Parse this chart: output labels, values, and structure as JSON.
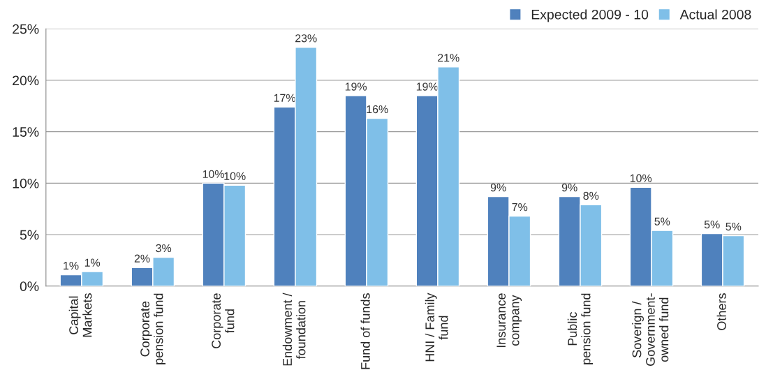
{
  "chart_data": {
    "type": "bar",
    "categories": [
      "Capital\nMarkets",
      "Corporate\npension fund",
      "Corporate\nfund",
      "Endowment /\nfoundation",
      "Fund of funds",
      "HNI / Family\nfund",
      "Insurance\ncompany",
      "Public\npension fund",
      "Soverign /\nGovernment-\nowned fund",
      "Others"
    ],
    "series": [
      {
        "name": "Expected 2009 - 10",
        "color": "#4f81bd",
        "values": [
          1.1,
          1.8,
          10.0,
          17.4,
          18.5,
          18.5,
          8.7,
          8.7,
          9.6,
          5.1
        ],
        "value_labels": [
          "1%",
          "2%",
          "10%",
          "17%",
          "19%",
          "19%",
          "9%",
          "9%",
          "10%",
          "5%"
        ]
      },
      {
        "name": "Actual 2008",
        "color": "#7fbfe8",
        "values": [
          1.4,
          2.8,
          9.8,
          23.2,
          16.3,
          21.3,
          6.8,
          7.9,
          5.4,
          4.9
        ],
        "value_labels": [
          "1%",
          "3%",
          "10%",
          "23%",
          "16%",
          "21%",
          "7%",
          "8%",
          "5%",
          "5%"
        ]
      }
    ],
    "ylim": [
      0,
      25
    ],
    "yticks": [
      {
        "value": 0,
        "label": "0%"
      },
      {
        "value": 5,
        "label": "5%"
      },
      {
        "value": 10,
        "label": "10%"
      },
      {
        "value": 15,
        "label": "15%"
      },
      {
        "value": 20,
        "label": "20%"
      },
      {
        "value": 25,
        "label": "25%"
      }
    ],
    "grid": "y",
    "legend": "top right"
  }
}
